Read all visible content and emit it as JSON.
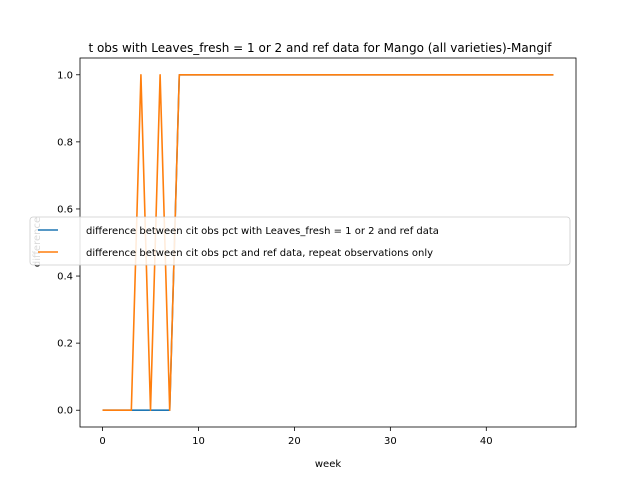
{
  "chart_data": {
    "type": "line",
    "title": "t obs with Leaves_fresh = 1 or 2 and ref data for Mango (all varieties)-Mangif",
    "xlabel": "week",
    "ylabel": "difference",
    "xlim": [
      -2.35,
      49.35
    ],
    "ylim": [
      -0.05,
      1.05
    ],
    "x_ticks": [
      0,
      10,
      20,
      30,
      40
    ],
    "y_ticks": [
      0.0,
      0.2,
      0.4,
      0.6,
      0.8,
      1.0
    ],
    "x_tick_labels": [
      "0",
      "10",
      "20",
      "30",
      "40"
    ],
    "y_tick_labels": [
      "0.0",
      "0.2",
      "0.4",
      "0.6",
      "0.8",
      "1.0"
    ],
    "grid": false,
    "legend_position": "center-right",
    "series": [
      {
        "name": "difference between cit obs pct with Leaves_fresh = 1 or 2 and ref data",
        "color": "#1f77b4",
        "x": [
          0,
          1,
          2,
          3,
          4,
          5,
          6,
          7,
          8,
          9,
          10,
          11,
          12,
          13,
          14,
          15,
          16,
          17,
          18,
          19,
          20,
          21,
          22,
          23,
          24,
          25,
          26,
          27,
          28,
          29,
          30,
          31,
          32,
          33,
          34,
          35,
          36,
          37,
          38,
          39,
          40,
          41,
          42,
          43,
          44,
          45,
          46,
          47
        ],
        "values": [
          0,
          0,
          0,
          0,
          0,
          0,
          0,
          0,
          1,
          1,
          1,
          1,
          1,
          1,
          1,
          1,
          1,
          1,
          1,
          1,
          1,
          1,
          1,
          1,
          1,
          1,
          1,
          1,
          1,
          1,
          1,
          1,
          1,
          1,
          1,
          1,
          1,
          1,
          1,
          1,
          1,
          1,
          1,
          1,
          1,
          1,
          1,
          1
        ]
      },
      {
        "name": "difference between cit obs pct and ref data, repeat observations only",
        "color": "#ff7f0e",
        "x": [
          0,
          1,
          2,
          3,
          4,
          5,
          6,
          7,
          8,
          9,
          10,
          11,
          12,
          13,
          14,
          15,
          16,
          17,
          18,
          19,
          20,
          21,
          22,
          23,
          24,
          25,
          26,
          27,
          28,
          29,
          30,
          31,
          32,
          33,
          34,
          35,
          36,
          37,
          38,
          39,
          40,
          41,
          42,
          43,
          44,
          45,
          46,
          47
        ],
        "values": [
          0,
          0,
          0,
          0,
          1,
          0,
          1,
          0,
          1,
          1,
          1,
          1,
          1,
          1,
          1,
          1,
          1,
          1,
          1,
          1,
          1,
          1,
          1,
          1,
          1,
          1,
          1,
          1,
          1,
          1,
          1,
          1,
          1,
          1,
          1,
          1,
          1,
          1,
          1,
          1,
          1,
          1,
          1,
          1,
          1,
          1,
          1,
          1
        ]
      }
    ]
  }
}
